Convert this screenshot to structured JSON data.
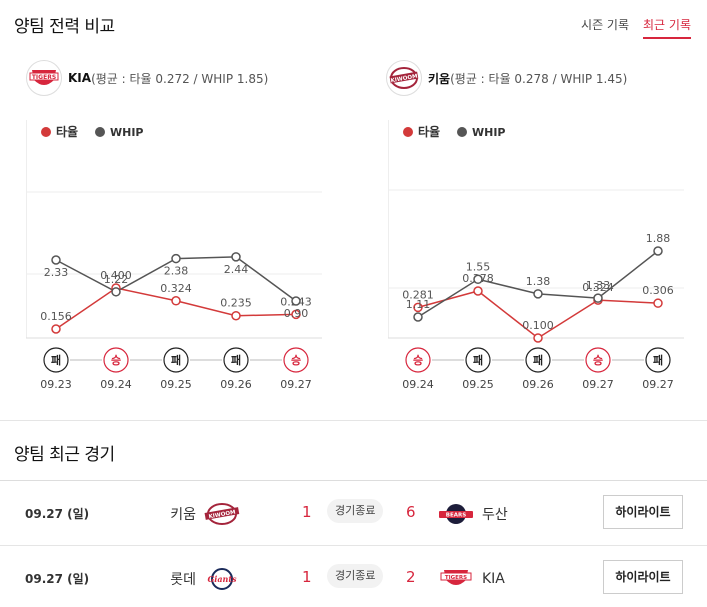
{
  "section_compare": {
    "title": "양팀 전력 비교"
  },
  "tabs": [
    {
      "label": "시즌 기록",
      "active": false
    },
    {
      "label": "최근 기록",
      "active": true
    }
  ],
  "teams": [
    {
      "name": "KIA",
      "logo_text": "TIGERS",
      "stats": "(평균 : 타율 0.272 / WHIP 1.85)",
      "color": "#d7263d"
    },
    {
      "name": "키움",
      "logo_text": "KIWOOM",
      "stats": "(평균 : 타율 0.278 / WHIP 1.45)",
      "color": "#a4243b"
    }
  ],
  "legend": {
    "avg_label": "타율",
    "whip_label": "WHIP",
    "avg_color": "#d33a3a",
    "whip_color": "#555555"
  },
  "chart_data": [
    {
      "type": "line",
      "team": "KIA",
      "categories": [
        "09.23",
        "09.24",
        "09.25",
        "09.26",
        "09.27"
      ],
      "results": [
        "패",
        "승",
        "패",
        "패",
        "승"
      ],
      "series": [
        {
          "name": "타율",
          "values": [
            0.156,
            0.4,
            0.324,
            0.235,
            0.243
          ],
          "labels": [
            "0.156",
            "0.400",
            "0.324",
            "0.235",
            "0.243"
          ]
        },
        {
          "name": "WHIP",
          "values": [
            2.33,
            1.22,
            2.38,
            2.44,
            0.9
          ],
          "labels": [
            "2.33",
            "1.22",
            "2.38",
            "2.44",
            "0.90"
          ]
        }
      ],
      "grid": true
    },
    {
      "type": "line",
      "team": "키움",
      "categories": [
        "09.24",
        "09.25",
        "09.26",
        "09.27",
        "09.27"
      ],
      "results": [
        "승",
        "패",
        "패",
        "승",
        "패"
      ],
      "series": [
        {
          "name": "타율",
          "values": [
            0.281,
            0.378,
            0.1,
            0.324,
            0.306
          ],
          "labels": [
            "0.281",
            "0.378",
            "0.100",
            "0.324",
            "0.306"
          ]
        },
        {
          "name": "WHIP",
          "values": [
            1.11,
            1.55,
            1.38,
            1.33,
            1.88
          ],
          "labels": [
            "1.11",
            "1.55",
            "1.38",
            "1.33",
            "1.88"
          ]
        }
      ],
      "grid": true
    }
  ],
  "section_recent": {
    "title": "양팀 최근 경기"
  },
  "games": [
    {
      "date": "09.27 (일)",
      "home": "키움",
      "home_logo": "KIWOOM",
      "home_score": "1",
      "status": "경기종료",
      "away_score": "6",
      "away_logo": "BEARS",
      "away": "두산",
      "highlight": "하이라이트"
    },
    {
      "date": "09.27 (일)",
      "home": "롯데",
      "home_logo": "Giants",
      "home_score": "1",
      "status": "경기종료",
      "away_score": "2",
      "away_logo": "TIGERS",
      "away": "KIA",
      "highlight": "하이라이트"
    }
  ]
}
